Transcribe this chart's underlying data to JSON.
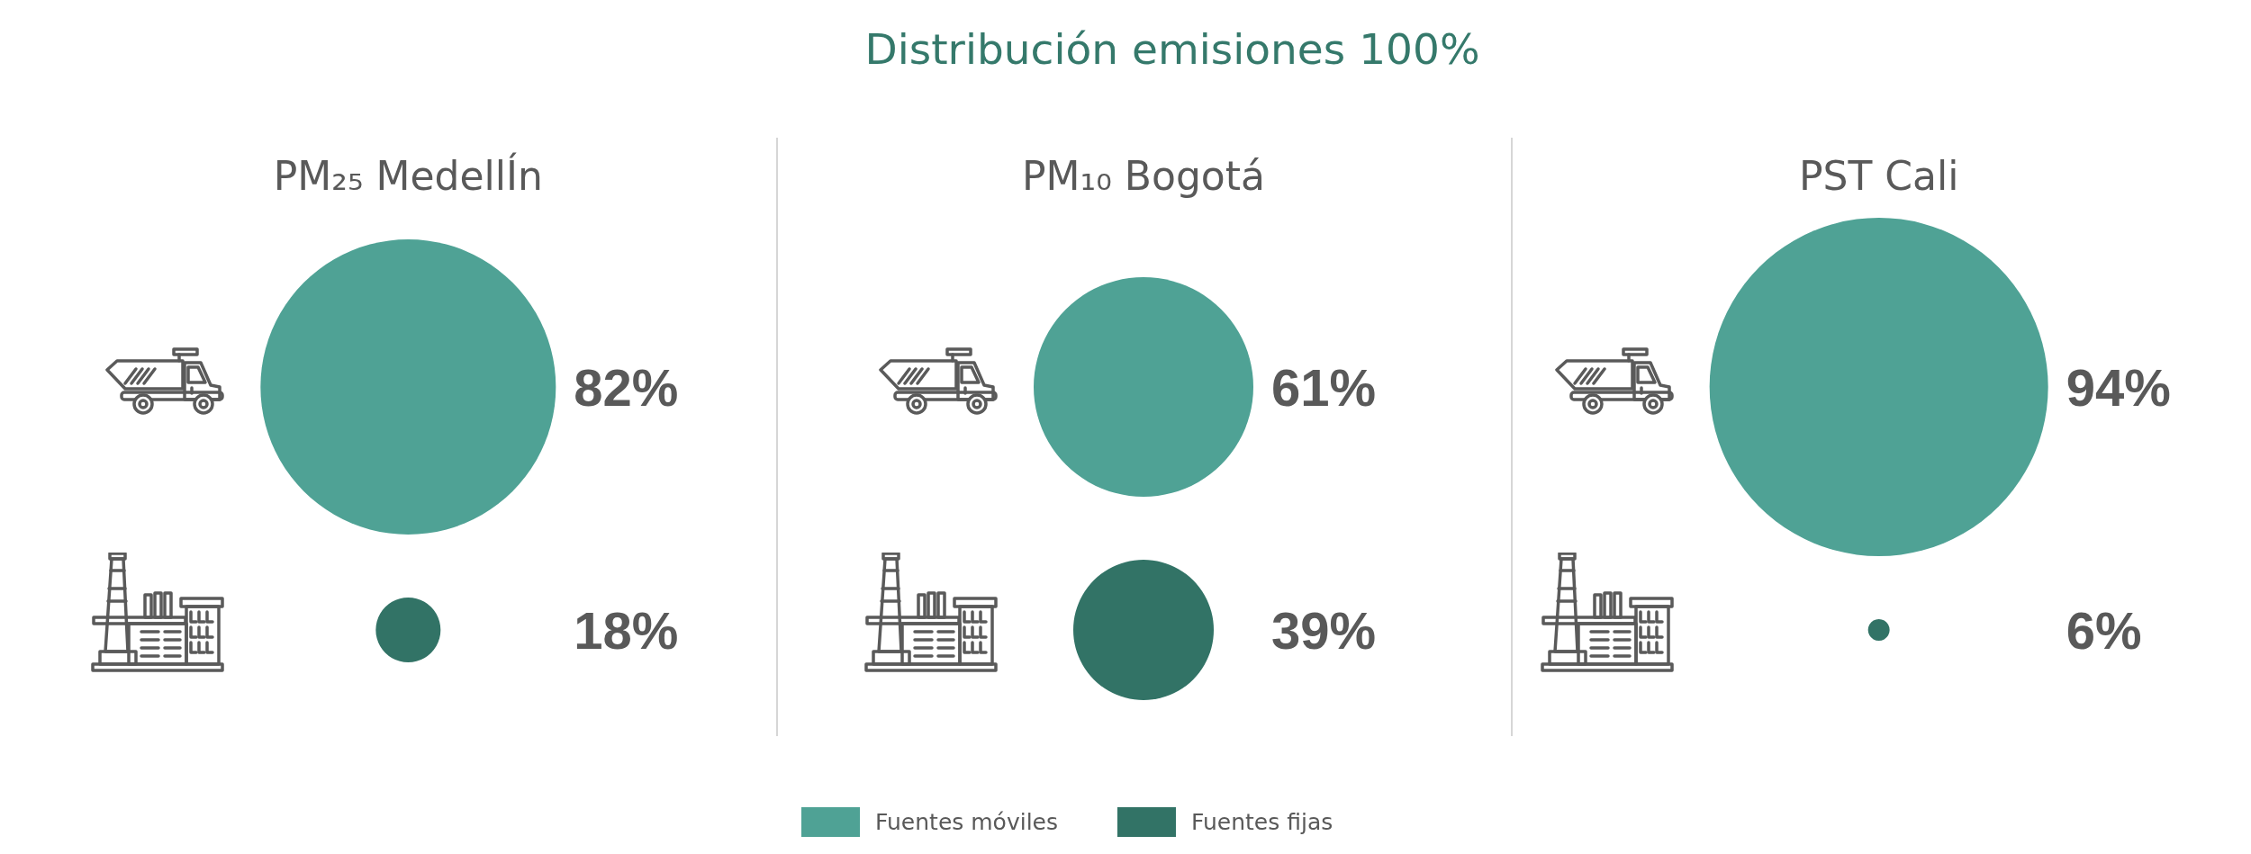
{
  "chart_data": {
    "type": "other",
    "title": "Distribución emisiones 100%",
    "categories": [
      "PM₂₅ MedellÍn",
      "PM₁₀ Bogotá",
      "PST Cali"
    ],
    "series": [
      {
        "name": "Fuentes móviles",
        "color": "#4fa295",
        "values": [
          82,
          61,
          94
        ],
        "value_labels": [
          "82%",
          "61%",
          "94%"
        ]
      },
      {
        "name": "Fuentes fijas",
        "color": "#327366",
        "values": [
          18,
          39,
          6
        ],
        "value_labels": [
          "18%",
          "39%",
          "6%"
        ]
      }
    ],
    "legend": "bottom"
  }
}
